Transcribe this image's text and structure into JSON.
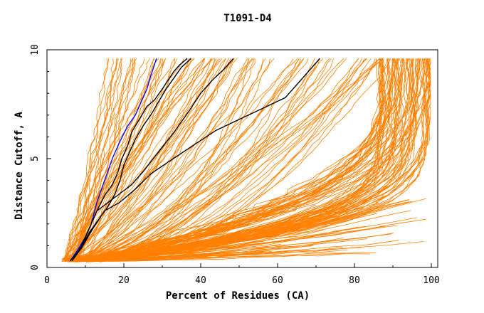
{
  "chart_data": {
    "type": "line",
    "title": "T1091-D4",
    "xlabel": "Percent of Residues (CA)",
    "ylabel": "Distance Cutoff, A",
    "xlim": [
      0,
      100
    ],
    "ylim": [
      0,
      10
    ],
    "x_ticks": [
      0,
      20,
      40,
      60,
      80,
      100
    ],
    "y_ticks": [
      0,
      5,
      10
    ],
    "grid": false,
    "colors": {
      "orange": "#ff8000",
      "black": "#000000",
      "blue": "#0000ff"
    },
    "series": [
      {
        "color": "#0000ff",
        "x": [
          6,
          8,
          10,
          11.5,
          13,
          15,
          17,
          19,
          21,
          23,
          24.5,
          26,
          27,
          28.5
        ],
        "y": [
          0.3,
          0.8,
          1.4,
          2.0,
          3.0,
          4.0,
          5.0,
          5.8,
          6.5,
          7.0,
          7.6,
          8.2,
          8.8,
          9.6
        ]
      },
      {
        "color": "#000000",
        "x": [
          6.5,
          9,
          11,
          13,
          15,
          17,
          18.5,
          19.5,
          21,
          22,
          24,
          26,
          28,
          30,
          31.5,
          33,
          34.5,
          36.5
        ],
        "y": [
          0.3,
          1.0,
          1.8,
          2.6,
          3.3,
          3.8,
          4.4,
          5.0,
          5.6,
          6.2,
          6.8,
          7.4,
          7.7,
          8.2,
          8.6,
          9.0,
          9.3,
          9.6
        ]
      },
      {
        "color": "#000000",
        "x": [
          6.5,
          9,
          11,
          13,
          15.5,
          17.5,
          19,
          20,
          21.5,
          23,
          25,
          27,
          29,
          31,
          33,
          35,
          37.5
        ],
        "y": [
          0.3,
          0.9,
          1.6,
          2.1,
          2.7,
          3.3,
          4.0,
          4.7,
          5.3,
          5.9,
          6.5,
          7.0,
          7.6,
          8.2,
          8.7,
          9.2,
          9.6
        ]
      },
      {
        "color": "#000000",
        "x": [
          6,
          9,
          11,
          13,
          16,
          19,
          22,
          25,
          29,
          33,
          37,
          40,
          43,
          46,
          48.5
        ],
        "y": [
          0.3,
          0.9,
          1.8,
          2.6,
          3.0,
          3.4,
          3.8,
          4.4,
          5.3,
          6.2,
          7.2,
          8.0,
          8.6,
          9.1,
          9.6
        ]
      },
      {
        "color": "#000000",
        "x": [
          6,
          9,
          12,
          15,
          19,
          23,
          27,
          32,
          38,
          44,
          50,
          56,
          62,
          65,
          68,
          71
        ],
        "y": [
          0.3,
          0.9,
          1.8,
          2.6,
          3.0,
          3.6,
          4.3,
          4.9,
          5.6,
          6.3,
          6.8,
          7.3,
          7.8,
          8.4,
          9.0,
          9.6
        ]
      }
    ]
  }
}
